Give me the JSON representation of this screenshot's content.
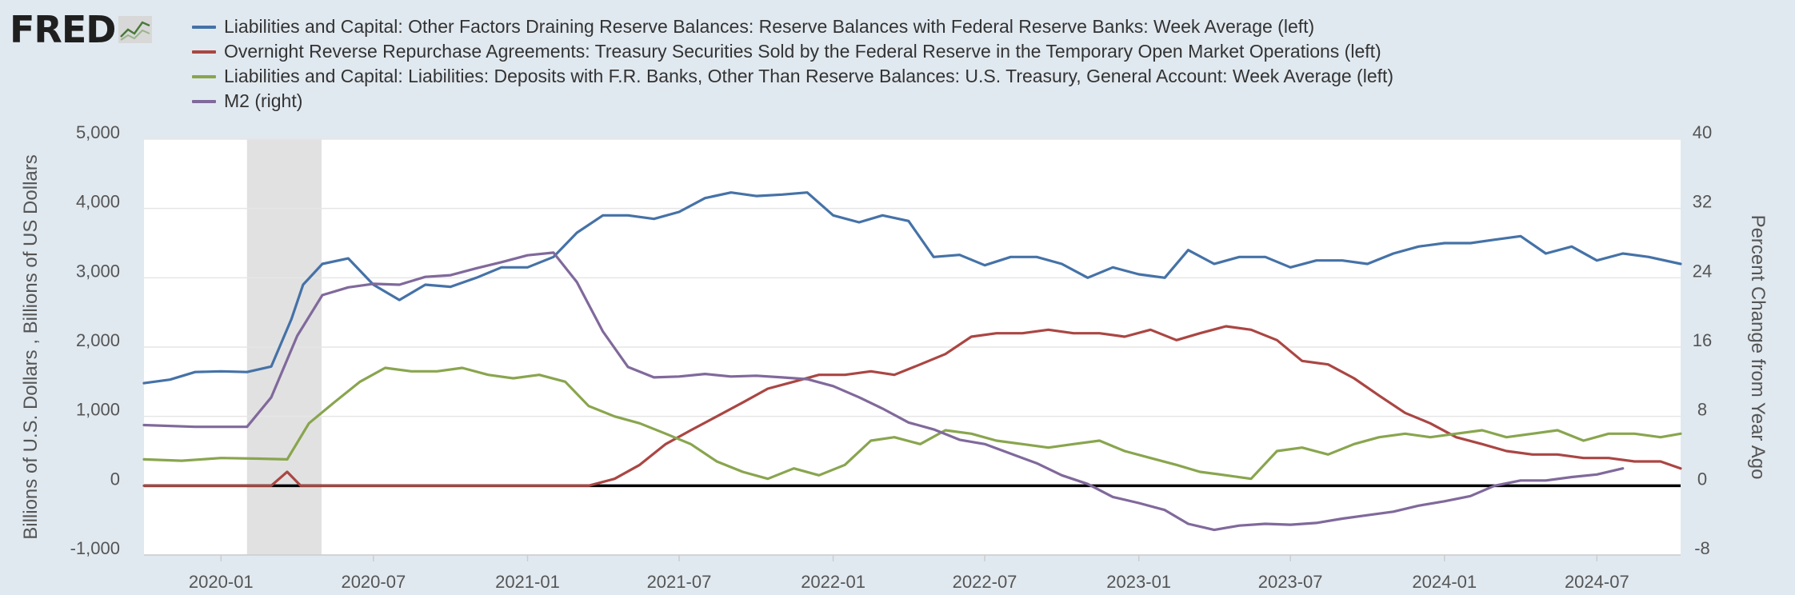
{
  "brand": {
    "logo_text": "FRED"
  },
  "legend": [
    {
      "label": "Liabilities and Capital: Other Factors Draining Reserve Balances: Reserve Balances with Federal Reserve Banks: Week Average (left)",
      "color": "#4572a7"
    },
    {
      "label": "Overnight Reverse Repurchase Agreements: Treasury Securities Sold by the Federal Reserve in the Temporary Open Market Operations (left)",
      "color": "#aa4643"
    },
    {
      "label": "Liabilities and Capital: Liabilities: Deposits with F.R. Banks, Other Than Reserve Balances: U.S. Treasury, General Account: Week Average (left)",
      "color": "#89a54e"
    },
    {
      "label": "M2 (right)",
      "color": "#80699b"
    }
  ],
  "chart_data": {
    "type": "line",
    "xlim": [
      "2019-10-01",
      "2024-10-09"
    ],
    "ylim_left": [
      -1000,
      5000
    ],
    "ylim_right": [
      -8,
      40
    ],
    "yticks_left": [
      "5,000",
      "4,000",
      "3,000",
      "2,000",
      "1,000",
      "0",
      "-1,000"
    ],
    "yticks_right": [
      "40",
      "32",
      "24",
      "16",
      "8",
      "0",
      "-8"
    ],
    "xticks": [
      "2020-01",
      "2020-07",
      "2021-01",
      "2021-07",
      "2022-01",
      "2022-07",
      "2023-01",
      "2023-07",
      "2024-01",
      "2024-07"
    ],
    "ylabel_left": "Billions of U.S. Dollars , Billions of US Dollars",
    "ylabel_right": "Percent Change from Year Ago",
    "grid": true,
    "recession_shading": [
      "2020-02-01",
      "2020-04-30"
    ],
    "series": [
      {
        "name": "Liabilities and Capital: Other Factors Draining Reserve Balances: Reserve Balances with Federal Reserve Banks: Week Average (left)",
        "axis": "left",
        "color": "#4572a7",
        "x": [
          "2019-10-01",
          "2019-11-01",
          "2019-12-01",
          "2020-01-01",
          "2020-02-01",
          "2020-03-01",
          "2020-03-25",
          "2020-04-08",
          "2020-05-01",
          "2020-06-01",
          "2020-07-01",
          "2020-08-01",
          "2020-09-01",
          "2020-10-01",
          "2020-11-01",
          "2020-12-01",
          "2021-01-01",
          "2021-02-01",
          "2021-03-01",
          "2021-04-01",
          "2021-05-01",
          "2021-06-01",
          "2021-07-01",
          "2021-08-01",
          "2021-09-01",
          "2021-10-01",
          "2021-11-01",
          "2021-12-01",
          "2022-01-01",
          "2022-02-01",
          "2022-03-01",
          "2022-04-01",
          "2022-05-01",
          "2022-06-01",
          "2022-07-01",
          "2022-08-01",
          "2022-09-01",
          "2022-10-01",
          "2022-11-01",
          "2022-12-01",
          "2023-01-01",
          "2023-02-01",
          "2023-03-01",
          "2023-04-01",
          "2023-05-01",
          "2023-06-01",
          "2023-07-01",
          "2023-08-01",
          "2023-09-01",
          "2023-10-01",
          "2023-11-01",
          "2023-12-01",
          "2024-01-01",
          "2024-02-01",
          "2024-03-01",
          "2024-04-01",
          "2024-05-01",
          "2024-06-01",
          "2024-07-01",
          "2024-08-01",
          "2024-09-01",
          "2024-10-09"
        ],
        "y": [
          1480,
          1530,
          1640,
          1650,
          1640,
          1720,
          2400,
          2900,
          3200,
          3280,
          2900,
          2680,
          2900,
          2870,
          3000,
          3150,
          3150,
          3300,
          3650,
          3900,
          3900,
          3850,
          3950,
          4150,
          4230,
          4180,
          4200,
          4230,
          3900,
          3800,
          3900,
          3820,
          3300,
          3330,
          3180,
          3300,
          3300,
          3200,
          3000,
          3150,
          3050,
          3000,
          3400,
          3200,
          3300,
          3300,
          3150,
          3250,
          3250,
          3200,
          3350,
          3450,
          3500,
          3500,
          3550,
          3600,
          3350,
          3450,
          3250,
          3350,
          3300,
          3200
        ]
      },
      {
        "name": "Overnight Reverse Repurchase Agreements: Treasury Securities Sold by the Federal Reserve in the Temporary Open Market Operations (left)",
        "axis": "left",
        "color": "#aa4643",
        "x": [
          "2019-10-01",
          "2020-03-01",
          "2020-03-20",
          "2020-04-05",
          "2020-06-01",
          "2021-01-01",
          "2021-03-15",
          "2021-04-15",
          "2021-05-15",
          "2021-06-15",
          "2021-07-15",
          "2021-08-15",
          "2021-09-15",
          "2021-10-15",
          "2021-11-15",
          "2021-12-15",
          "2022-01-15",
          "2022-02-15",
          "2022-03-15",
          "2022-04-15",
          "2022-05-15",
          "2022-06-15",
          "2022-07-15",
          "2022-08-15",
          "2022-09-15",
          "2022-10-15",
          "2022-11-15",
          "2022-12-15",
          "2023-01-15",
          "2023-02-15",
          "2023-03-15",
          "2023-04-15",
          "2023-05-15",
          "2023-06-15",
          "2023-07-15",
          "2023-08-15",
          "2023-09-15",
          "2023-10-15",
          "2023-11-15",
          "2023-12-15",
          "2024-01-15",
          "2024-02-15",
          "2024-03-15",
          "2024-04-15",
          "2024-05-15",
          "2024-06-15",
          "2024-07-15",
          "2024-08-15",
          "2024-09-15",
          "2024-10-09"
        ],
        "y": [
          0,
          0,
          200,
          0,
          0,
          0,
          0,
          100,
          300,
          600,
          800,
          1000,
          1200,
          1400,
          1500,
          1600,
          1600,
          1650,
          1600,
          1750,
          1900,
          2150,
          2200,
          2200,
          2250,
          2200,
          2200,
          2150,
          2250,
          2100,
          2200,
          2300,
          2250,
          2100,
          1800,
          1750,
          1550,
          1300,
          1050,
          900,
          700,
          600,
          500,
          450,
          450,
          400,
          400,
          350,
          350,
          250
        ]
      },
      {
        "name": "Liabilities and Capital: Liabilities: Deposits with F.R. Banks, Other Than Reserve Balances: U.S. Treasury, General Account: Week Average (left)",
        "axis": "left",
        "color": "#89a54e",
        "x": [
          "2019-10-01",
          "2019-11-15",
          "2020-01-01",
          "2020-02-15",
          "2020-03-20",
          "2020-04-15",
          "2020-05-15",
          "2020-06-15",
          "2020-07-15",
          "2020-08-15",
          "2020-09-15",
          "2020-10-15",
          "2020-11-15",
          "2020-12-15",
          "2021-01-15",
          "2021-02-15",
          "2021-03-15",
          "2021-04-15",
          "2021-05-15",
          "2021-06-15",
          "2021-07-15",
          "2021-08-15",
          "2021-09-15",
          "2021-10-15",
          "2021-11-15",
          "2021-12-15",
          "2022-01-15",
          "2022-02-15",
          "2022-03-15",
          "2022-04-15",
          "2022-05-15",
          "2022-06-15",
          "2022-07-15",
          "2022-08-15",
          "2022-09-15",
          "2022-10-15",
          "2022-11-15",
          "2022-12-15",
          "2023-01-15",
          "2023-02-15",
          "2023-03-15",
          "2023-04-15",
          "2023-05-15",
          "2023-06-15",
          "2023-07-15",
          "2023-08-15",
          "2023-09-15",
          "2023-10-15",
          "2023-11-15",
          "2023-12-15",
          "2024-01-15",
          "2024-02-15",
          "2024-03-15",
          "2024-04-15",
          "2024-05-15",
          "2024-06-15",
          "2024-07-15",
          "2024-08-15",
          "2024-09-15",
          "2024-10-09"
        ],
        "y": [
          380,
          360,
          400,
          390,
          380,
          900,
          1200,
          1500,
          1700,
          1650,
          1650,
          1700,
          1600,
          1550,
          1600,
          1500,
          1150,
          1000,
          900,
          750,
          600,
          350,
          200,
          100,
          250,
          150,
          300,
          650,
          700,
          600,
          800,
          750,
          650,
          600,
          550,
          600,
          650,
          500,
          400,
          300,
          200,
          150,
          100,
          500,
          550,
          450,
          600,
          700,
          750,
          700,
          750,
          800,
          700,
          750,
          800,
          650,
          750,
          750,
          700,
          750
        ]
      },
      {
        "name": "M2 (right)",
        "axis": "right",
        "color": "#80699b",
        "x": [
          "2019-10-01",
          "2019-12-01",
          "2020-01-01",
          "2020-02-01",
          "2020-03-01",
          "2020-04-01",
          "2020-05-01",
          "2020-06-01",
          "2020-07-01",
          "2020-08-01",
          "2020-09-01",
          "2020-10-01",
          "2020-11-01",
          "2020-12-01",
          "2021-01-01",
          "2021-02-01",
          "2021-03-01",
          "2021-04-01",
          "2021-05-01",
          "2021-06-01",
          "2021-07-01",
          "2021-08-01",
          "2021-09-01",
          "2021-10-01",
          "2021-11-01",
          "2021-12-01",
          "2022-01-01",
          "2022-02-01",
          "2022-03-01",
          "2022-04-01",
          "2022-05-01",
          "2022-06-01",
          "2022-07-01",
          "2022-08-01",
          "2022-09-01",
          "2022-10-01",
          "2022-11-01",
          "2022-12-01",
          "2023-01-01",
          "2023-02-01",
          "2023-03-01",
          "2023-04-01",
          "2023-05-01",
          "2023-06-01",
          "2023-07-01",
          "2023-08-01",
          "2023-09-01",
          "2023-10-01",
          "2023-11-01",
          "2023-12-01",
          "2024-01-01",
          "2024-02-01",
          "2024-03-01",
          "2024-04-01",
          "2024-05-01",
          "2024-06-01",
          "2024-07-01",
          "2024-08-01"
        ],
        "y": [
          7.0,
          6.8,
          6.8,
          6.8,
          10.2,
          17.3,
          22.0,
          22.9,
          23.3,
          23.2,
          24.1,
          24.3,
          25.1,
          25.8,
          26.6,
          26.9,
          23.5,
          17.8,
          13.7,
          12.5,
          12.6,
          12.9,
          12.6,
          12.7,
          12.5,
          12.3,
          11.5,
          10.2,
          8.9,
          7.3,
          6.5,
          5.3,
          4.8,
          3.7,
          2.6,
          1.2,
          0.2,
          -1.3,
          -2.0,
          -2.8,
          -4.4,
          -5.1,
          -4.6,
          -4.4,
          -4.5,
          -4.3,
          -3.8,
          -3.4,
          -3.0,
          -2.3,
          -1.8,
          -1.2,
          0.0,
          0.6,
          0.6,
          1.0,
          1.3,
          2.0
        ]
      }
    ]
  }
}
